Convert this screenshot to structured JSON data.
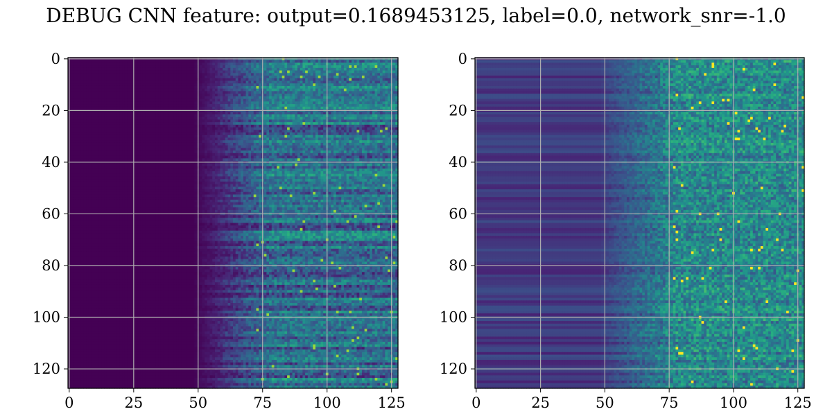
{
  "figure": {
    "title": "DEBUG CNN feature: output=0.1689453125, label=0.0, network_snr=-1.0"
  },
  "chart_data": [
    {
      "type": "heatmap",
      "title": "",
      "xlabel": "",
      "ylabel": "",
      "colormap": "viridis",
      "grid": true,
      "matrix_size": [
        128,
        128
      ],
      "xlim": [
        -0.5,
        127.5
      ],
      "ylim": [
        127.5,
        -0.5
      ],
      "xticks": [
        0,
        25,
        50,
        75,
        100,
        125
      ],
      "yticks": [
        0,
        20,
        40,
        60,
        80,
        100,
        120
      ],
      "description_values": {
        "cols_0_to_48": 0.0,
        "cols_48_to_70": 0.05,
        "cols_70_to_128": 0.25
      }
    },
    {
      "type": "heatmap",
      "title": "",
      "xlabel": "",
      "ylabel": "",
      "colormap": "viridis",
      "grid": true,
      "matrix_size": [
        128,
        128
      ],
      "xlim": [
        -0.5,
        127.5
      ],
      "ylim": [
        127.5,
        -0.5
      ],
      "xticks": [
        0,
        25,
        50,
        75,
        100,
        125
      ],
      "yticks": [
        0,
        20,
        40,
        60,
        80,
        100,
        120
      ],
      "description_values": {
        "cols_0_to_50": 0.12,
        "cols_50_to_75": 0.18,
        "cols_75_to_128": 0.35
      }
    }
  ],
  "colors": {
    "viridis_low": "#440154",
    "viridis_mid": "#21918c",
    "viridis_high": "#fde725",
    "grid": "#b0b0b0",
    "axis": "#000000"
  }
}
